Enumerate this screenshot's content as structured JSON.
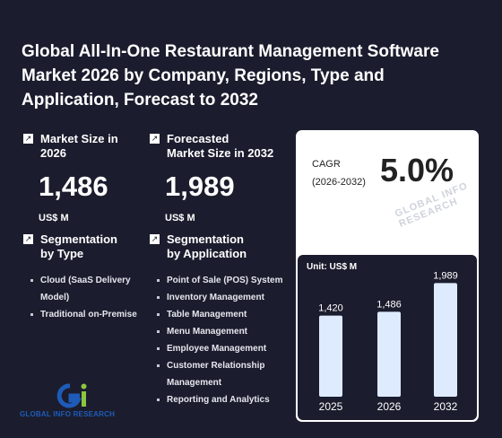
{
  "title": "Global All-In-One Restaurant Management Software Market 2026 by Company, Regions, Type and Application, Forecast to 2032",
  "market_size": {
    "label_line1": "Market Size in",
    "label_line2": "2026",
    "value": "1,486",
    "unit": "US$ M"
  },
  "forecast_size": {
    "label_line1": "Forecasted",
    "label_line2": "Market Size in 2032",
    "value": "1,989",
    "unit": "US$ M"
  },
  "segmentation_type": {
    "label_line1": "Segmentation",
    "label_line2": "by Type",
    "items": [
      "Cloud (SaaS Delivery Model)",
      "Traditional on-Premise"
    ]
  },
  "segmentation_application": {
    "label_line1": "Segmentation",
    "label_line2": "by Application",
    "items": [
      "Point of Sale (POS) System",
      "Inventory Management",
      "Table Management",
      "Menu Management",
      "Employee Management",
      "Customer Relationship Management",
      "Reporting and Analytics"
    ]
  },
  "cagr": {
    "label_line1": "CAGR",
    "label_line2": "(2026-2032)",
    "value": "5.0%"
  },
  "watermark": "GLOBAL INFO RESEARCH",
  "logo_text": "GLOBAL INFO RESEARCH",
  "icons": {
    "stat": "arrow-up-right-icon",
    "logo": "gir-logo-icon"
  },
  "colors": {
    "background": "#1b1d2e",
    "bar": "#deebff",
    "logo_blue": "#1e5bb8",
    "logo_green": "#8cc63f"
  },
  "chart_data": {
    "type": "bar",
    "unit_label": "Unit: US$ M",
    "categories": [
      "2025",
      "2026",
      "2032"
    ],
    "values": [
      1420,
      1486,
      1989
    ],
    "value_labels": [
      "1,420",
      "1,486",
      "1,989"
    ],
    "ylim": [
      0,
      2200
    ],
    "title": "",
    "xlabel": "",
    "ylabel": ""
  }
}
